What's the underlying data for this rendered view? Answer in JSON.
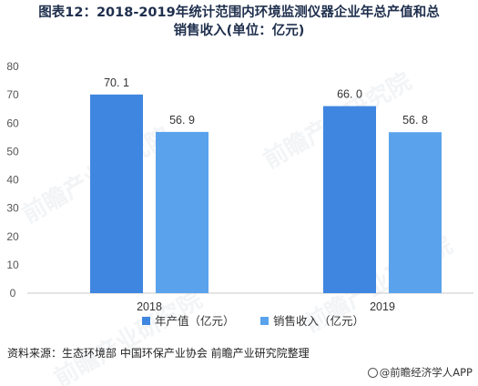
{
  "chart_data": {
    "type": "bar",
    "title": "图表12：2018-2019年统计范围内环境监测仪器企业年总产值和总销售收入(单位：亿元)",
    "title_lines": [
      "图表12：2018-2019年统计范围内环境监测仪器企业年总产值和总",
      "销售收入(单位：亿元)"
    ],
    "categories": [
      "2018",
      "2019"
    ],
    "series": [
      {
        "name": "年产值（亿元）",
        "values": [
          70.1,
          66.0
        ],
        "labels": [
          "70. 1",
          "66. 0"
        ],
        "color": "#3f86e0"
      },
      {
        "name": "销售收入（亿元）",
        "values": [
          56.9,
          56.8
        ],
        "labels": [
          "56. 9",
          "56. 8"
        ],
        "color": "#5aa3ec"
      }
    ],
    "yticks": [
      0,
      10,
      20,
      30,
      40,
      50,
      60,
      70,
      80
    ],
    "ylim": [
      0,
      80
    ],
    "xlabel": "",
    "ylabel": "",
    "grid": false,
    "legend_position": "bottom"
  },
  "source_text": "资料来源：生态环境部 中国环保产业协会 前瞻产业研究院整理",
  "credit_text": "@前瞻经济学人APP",
  "watermark_text": "前瞻产业研究院",
  "colors": {
    "axis": "#c8c8c8",
    "tick_text": "#555555",
    "label_text": "#333333"
  }
}
